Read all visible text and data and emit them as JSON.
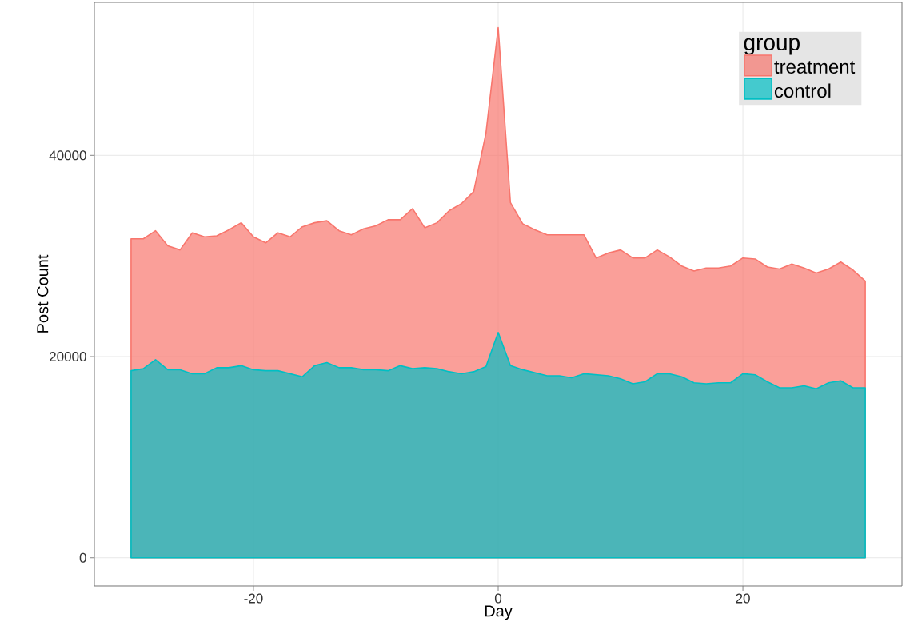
{
  "chart_data": {
    "type": "area",
    "xlabel": "Day",
    "ylabel": "Post Count",
    "legend_title": "group",
    "legend": "top right",
    "grid": true,
    "x": [
      -30,
      -29,
      -28,
      -27,
      -26,
      -25,
      -24,
      -23,
      -22,
      -21,
      -20,
      -19,
      -18,
      -17,
      -16,
      -15,
      -14,
      -13,
      -12,
      -11,
      -10,
      -9,
      -8,
      -7,
      -6,
      -5,
      -4,
      -3,
      -2,
      -1,
      0,
      1,
      2,
      3,
      4,
      5,
      6,
      7,
      8,
      9,
      10,
      11,
      12,
      13,
      14,
      15,
      16,
      17,
      18,
      19,
      20,
      21,
      22,
      23,
      24,
      25,
      26,
      27,
      28,
      29,
      30
    ],
    "series": [
      {
        "name": "treatment",
        "color": "#f8766d",
        "values": [
          31700,
          31700,
          32500,
          31000,
          30600,
          32300,
          31900,
          32000,
          32600,
          33300,
          31900,
          31300,
          32300,
          31900,
          32900,
          33300,
          33500,
          32500,
          32100,
          32700,
          33000,
          33600,
          33600,
          34700,
          32800,
          33300,
          34500,
          35200,
          36400,
          42200,
          52700,
          35300,
          33200,
          32600,
          32100,
          32100,
          32100,
          32100,
          29800,
          30300,
          30600,
          29800,
          29800,
          30600,
          29900,
          29000,
          28500,
          28800,
          28800,
          29000,
          29800,
          29700,
          28900,
          28700,
          29200,
          28800,
          28300,
          28700,
          29400,
          28600,
          27500
        ]
      },
      {
        "name": "control",
        "color": "#00bfc4",
        "values": [
          18600,
          18800,
          19700,
          18700,
          18700,
          18300,
          18300,
          18900,
          18900,
          19100,
          18700,
          18600,
          18600,
          18300,
          18000,
          19100,
          19400,
          18900,
          18900,
          18700,
          18700,
          18600,
          19100,
          18800,
          18900,
          18800,
          18500,
          18300,
          18500,
          19000,
          22400,
          19100,
          18700,
          18400,
          18100,
          18100,
          17900,
          18300,
          18200,
          18100,
          17800,
          17300,
          17500,
          18300,
          18300,
          18000,
          17400,
          17300,
          17400,
          17400,
          18300,
          18200,
          17500,
          16900,
          16900,
          17100,
          16800,
          17400,
          17600,
          16900,
          16900
        ]
      }
    ],
    "xlim": [
      -33,
      33
    ],
    "ylim": [
      -2800,
      55200
    ],
    "xticks": [
      -20,
      0,
      20
    ],
    "yticks": [
      0,
      20000,
      40000
    ]
  }
}
